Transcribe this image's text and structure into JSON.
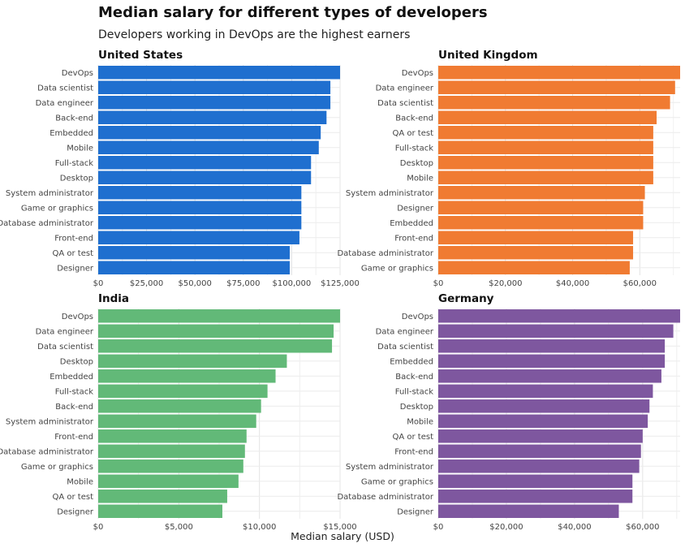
{
  "title": "Median salary for different types of developers",
  "subtitle": "Developers working in DevOps are the highest earners",
  "xlabel": "Median salary (USD)",
  "chart_data": [
    {
      "type": "bar",
      "orientation": "horizontal",
      "panel_title": "United States",
      "color": "#1F6FCF",
      "categories": [
        "DevOps",
        "Data scientist",
        "Data engineer",
        "Back-end",
        "Embedded",
        "Mobile",
        "Full-stack",
        "Desktop",
        "System administrator",
        "Game or graphics",
        "Database administrator",
        "Front-end",
        "QA or test",
        "Designer"
      ],
      "values": [
        125000,
        120000,
        120000,
        118000,
        115000,
        114000,
        110000,
        110000,
        105000,
        105000,
        105000,
        104000,
        99000,
        99000
      ],
      "xlim": [
        0,
        125000
      ],
      "xticks": [
        0,
        25000,
        50000,
        75000,
        100000,
        125000
      ],
      "xtick_labels": [
        "$0",
        "$25,000",
        "$50,000",
        "$75,000",
        "$100,000",
        "$125,000"
      ],
      "grid": true
    },
    {
      "type": "bar",
      "orientation": "horizontal",
      "panel_title": "United Kingdom",
      "color": "#F07B32",
      "categories": [
        "DevOps",
        "Data engineer",
        "Data scientist",
        "Back-end",
        "QA or test",
        "Full-stack",
        "Desktop",
        "Mobile",
        "System administrator",
        "Designer",
        "Embedded",
        "Front-end",
        "Database administrator",
        "Game or graphics"
      ],
      "values": [
        72000,
        70500,
        69000,
        65000,
        64000,
        64000,
        64000,
        64000,
        61500,
        61000,
        61000,
        58000,
        58000,
        57000
      ],
      "xlim": [
        0,
        72000
      ],
      "xticks": [
        0,
        20000,
        40000,
        60000
      ],
      "xtick_labels": [
        "$0",
        "$20,000",
        "$40,000",
        "$60,000"
      ],
      "grid": true
    },
    {
      "type": "bar",
      "orientation": "horizontal",
      "panel_title": "India",
      "color": "#62B978",
      "categories": [
        "DevOps",
        "Data engineer",
        "Data scientist",
        "Desktop",
        "Embedded",
        "Full-stack",
        "Back-end",
        "System administrator",
        "Front-end",
        "Database administrator",
        "Game or graphics",
        "Mobile",
        "QA or test",
        "Designer"
      ],
      "values": [
        15000,
        14600,
        14500,
        11700,
        11000,
        10500,
        10100,
        9800,
        9200,
        9100,
        9000,
        8700,
        8000,
        7700
      ],
      "xlim": [
        0,
        15000
      ],
      "xticks": [
        0,
        5000,
        10000,
        15000
      ],
      "xtick_labels": [
        "$0",
        "$5,000",
        "$10,000",
        "$15,000"
      ],
      "grid": true
    },
    {
      "type": "bar",
      "orientation": "horizontal",
      "panel_title": "Germany",
      "color": "#7E579F",
      "categories": [
        "DevOps",
        "Data engineer",
        "Data scientist",
        "Embedded",
        "Back-end",
        "Full-stack",
        "Desktop",
        "Mobile",
        "QA or test",
        "Front-end",
        "System administrator",
        "Game or graphics",
        "Database administrator",
        "Designer"
      ],
      "values": [
        71000,
        69000,
        66500,
        66500,
        65500,
        63000,
        62000,
        61500,
        60000,
        59500,
        59000,
        57000,
        57000,
        53000
      ],
      "xlim": [
        0,
        71000
      ],
      "xticks": [
        0,
        20000,
        40000,
        60000
      ],
      "xtick_labels": [
        "$0",
        "$20,000",
        "$40,000",
        "$60,000"
      ],
      "grid": true
    }
  ]
}
